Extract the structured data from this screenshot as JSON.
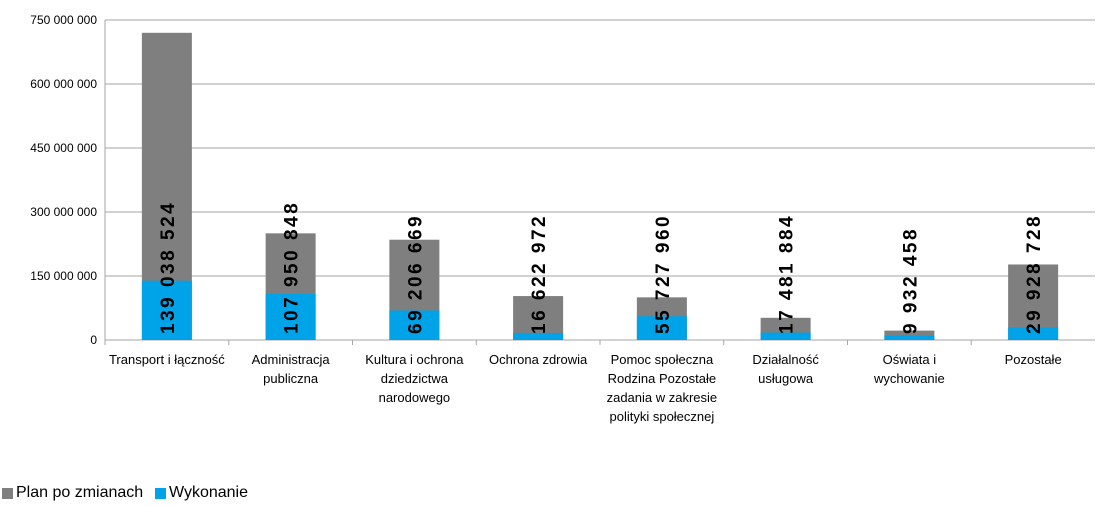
{
  "chart_data": {
    "type": "bar",
    "categories": [
      "Transport i łączność",
      "Administracja publiczna",
      "Kultura i ochrona dziedzictwa narodowego",
      "Ochrona zdrowia",
      "Pomoc społeczna Rodzina Pozostałe zadania w zakresie polityki społecznej",
      "Działalność usługowa",
      "Oświata i wychowanie",
      "Pozostałe"
    ],
    "series": [
      {
        "name": "Plan po zmianach",
        "color": "#7f7f7f",
        "values": [
          720000000,
          250000000,
          235000000,
          103000000,
          100000000,
          52000000,
          22000000,
          177000000
        ]
      },
      {
        "name": "Wykonanie",
        "color": "#00a2e8",
        "values": [
          139038524,
          107950848,
          69206669,
          16622972,
          55727960,
          17481884,
          9932458,
          29928728
        ],
        "value_labels": [
          "139 038 524",
          "107 950 848",
          "69 206 669",
          "16 622 972",
          "55 727 960",
          "17 481 884",
          "9 932 458",
          "29 928 728"
        ]
      }
    ],
    "ylim": [
      0,
      750000000
    ],
    "yticks": [
      0,
      {
        "value": 150000000,
        "label": "150 000 000"
      },
      {
        "value": 300000000,
        "label": "300 000 000"
      },
      {
        "value": 450000000,
        "label": "450 000 000"
      },
      {
        "value": 600000000,
        "label": "600 000 000"
      },
      {
        "value": 750000000,
        "label": "750 000 000"
      }
    ],
    "grid": true,
    "legend": "bottom-left"
  }
}
